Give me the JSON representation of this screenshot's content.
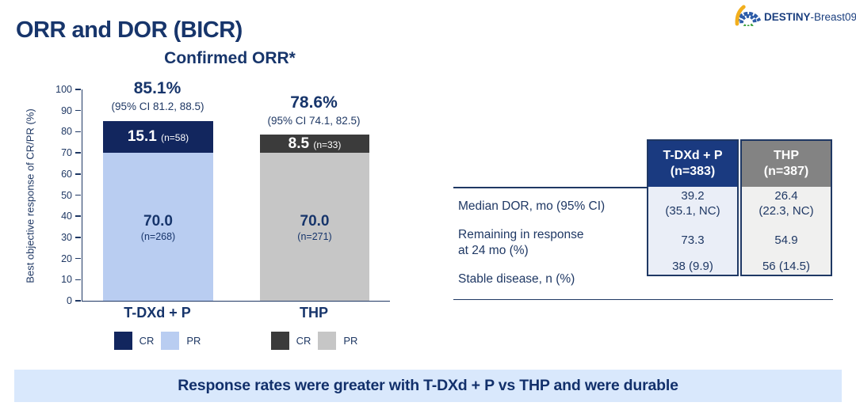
{
  "logo": {
    "brand_bold": "DESTINY",
    "brand_rest": "-Breast09"
  },
  "page_title": "ORR and DOR (BICR)",
  "chart_data": {
    "type": "bar",
    "stacked": true,
    "title": "Confirmed ORR*",
    "ylabel": "Best objective response of CR/PR (%)",
    "ylim": [
      0,
      100
    ],
    "yticks": [
      0,
      10,
      20,
      30,
      40,
      50,
      60,
      70,
      80,
      90,
      100
    ],
    "categories": [
      "T-DXd + P",
      "THP"
    ],
    "bars": [
      {
        "category": "T-DXd + P",
        "total_label": "85.1%",
        "ci_label": "(95% CI 81.2, 88.5)",
        "cr": {
          "value": 15.1,
          "label": "15.1",
          "n_label": "(n=58)",
          "color": "#12265e"
        },
        "pr": {
          "value": 70.0,
          "label": "70.0",
          "n_label": "(n=268)",
          "color": "#b9cdf1"
        }
      },
      {
        "category": "THP",
        "total_label": "78.6%",
        "ci_label": "(95% CI 74.1, 82.5)",
        "cr": {
          "value": 8.5,
          "label": "8.5",
          "n_label": "(n=33)",
          "color": "#3b3b3b"
        },
        "pr": {
          "value": 70.0,
          "label": "70.0",
          "n_label": "(n=271)",
          "color": "#c6c6c6"
        }
      }
    ],
    "legend": [
      {
        "group": "T-DXd + P",
        "entries": [
          {
            "label": "CR",
            "color": "#12265e"
          },
          {
            "label": "PR",
            "color": "#b9cdf1"
          }
        ]
      },
      {
        "group": "THP",
        "entries": [
          {
            "label": "CR",
            "color": "#3b3b3b"
          },
          {
            "label": "PR",
            "color": "#c6c6c6"
          }
        ]
      }
    ]
  },
  "dor_table": {
    "col_headers": [
      {
        "name": "T-DXd + P",
        "n": "(n=383)",
        "color": "#1a3a80",
        "body_bg": "#eaeef7"
      },
      {
        "name": "THP",
        "n": "(n=387)",
        "color": "#838383",
        "body_bg": "#f0f0ef"
      }
    ],
    "rows": [
      {
        "label": [
          "Median DOR, mo (95% CI)",
          ""
        ],
        "tdxd": [
          "39.2",
          "(35.1, NC)"
        ],
        "thp": [
          "26.4",
          "(22.3, NC)"
        ]
      },
      {
        "label": [
          "Remaining in response",
          "at 24 mo (%)"
        ],
        "tdxd": [
          "73.3",
          ""
        ],
        "thp": [
          "54.9",
          ""
        ]
      },
      {
        "label": [
          "Stable disease, n (%)",
          ""
        ],
        "tdxd": [
          "38 (9.9)",
          ""
        ],
        "thp": [
          "56 (14.5)",
          ""
        ]
      }
    ]
  },
  "banner": {
    "text": "Response rates were greater with T-DXd + P vs THP and were durable",
    "bg": "#d9e8fc"
  }
}
